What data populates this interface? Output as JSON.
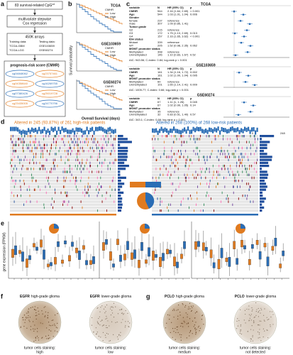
{
  "panels": [
    "a",
    "b",
    "c",
    "d",
    "e",
    "f",
    "g"
  ],
  "a": {
    "step1": "83 survival-related CpG",
    "step1_sup": "cd",
    "step2": [
      "multivariate stepwise",
      "Cox regression"
    ],
    "arrays": "450K arrays",
    "training_title": "Training data:",
    "training": [
      "TCGA-GBM",
      "TCGA-LGG"
    ],
    "testing_title": "Testing data:",
    "testing": [
      "GSE103659",
      "GSE60274"
    ],
    "score": "prognosis-risk score (CMHR)",
    "probes": [
      "cg04848062",
      "cg23757461",
      "cg04358640",
      "cg16269755",
      "cg07380426",
      "cg25019728",
      "cg23435005",
      "cg24770796"
    ]
  },
  "b": {
    "plots": [
      "TCGA",
      "GSE103659",
      "GSE60274"
    ],
    "legend_title": "CMHR",
    "legend": [
      "Low",
      "High"
    ],
    "xlabel": "Overall Survival (days)",
    "ylabel": "Survival probability"
  },
  "c": {
    "header": [
      "variable",
      "N",
      "HR (95% CI)",
      "p"
    ],
    "tables": [
      {
        "title": "TCGA",
        "rows": [
          [
            "CMHR",
            "544",
            "2.16 (1.64, 2.69)",
            "< 0.001"
          ],
          [
            "Age",
            "544",
            "1.03 (1.01, 1.04)",
            "0.006"
          ],
          [
            "Gender"
          ],
          [
            "female",
            "237",
            "reference"
          ],
          [
            "male",
            "307",
            "1.09 (0.85, 1.41)"
          ],
          [
            "Tumor grade"
          ],
          [
            "G2",
            "215",
            "reference"
          ],
          [
            "G3",
            "172",
            "1.75 (1.13, 2.69)",
            "0.013"
          ],
          [
            "G4",
            "157",
            "2.16 (1.65, 3.62)",
            "< 0.001"
          ],
          [
            "IDH status"
          ],
          [
            "Mutant",
            "339",
            "reference"
          ],
          [
            "WT",
            "205",
            "1.52 (0.98, 2.35)",
            "0.062"
          ],
          [
            "MGMT promoter status"
          ],
          [
            "Methylated",
            "398",
            "reference"
          ],
          [
            "Unmethylated",
            "146",
            "1.10 (0.83, 1.67)",
            "0.52"
          ]
        ],
        "footer": "AIC: 943.56; C-index: 0.84; log-rank p < 0.001"
      },
      {
        "title": "GSE103659",
        "rows": [
          [
            "CMHR",
            "161",
            "1.34 (1.16, 1.72)",
            "0.002"
          ],
          [
            "Age",
            "161",
            "1.02 (1.00, 1.04)",
            "0.095"
          ],
          [
            "MGMT promoter status"
          ],
          [
            "Methylated",
            "60",
            "reference"
          ],
          [
            "Unmethylated",
            "101",
            "1.65 (1.14, 2.41)",
            "0.009"
          ]
        ],
        "footer": "AIC: 1005.77; C-index: 0.66; log-rank p < 0.001"
      },
      {
        "title": "GSE60274",
        "rows": [
          [
            "CMHR",
            "67",
            "1.11 (1, 1.26)",
            "0.045"
          ],
          [
            "Age",
            "67",
            "1.02 (0.99, 1.05)",
            "0.14"
          ],
          [
            "MGMT promoter status"
          ],
          [
            "Methylated",
            "35",
            "reference"
          ],
          [
            "Unmethylated",
            "32",
            "0.83 (0.51, 1.40)",
            "0.57"
          ]
        ],
        "footer": "AIC: 343.1; C-index: 0.66; log-rank p < 0.001"
      }
    ]
  },
  "d": {
    "left_title": "Altered in 245 (93.87%) of 261 high-risk patients",
    "left_range": [
      "0",
      "131"
    ],
    "right_title": "Altered in 268 (100%) of 268 low-risk patients",
    "right_range": [
      "0",
      "248"
    ]
  },
  "e": {
    "ylabel": "gene expression (FPKM)"
  },
  "f": {
    "images": [
      {
        "gene": "EGFR",
        "title": "high-grade glioma",
        "caption": [
          "tumor cells staining:",
          "high"
        ]
      },
      {
        "gene": "EGFR",
        "title": "lower-grade glioma",
        "caption": [
          "tumor cells staining:",
          "low"
        ]
      }
    ]
  },
  "g": {
    "images": [
      {
        "gene": "PCLO",
        "title": "high-grade glioma",
        "caption": [
          "tumor cells staining:",
          "medium"
        ]
      },
      {
        "gene": "PCLO",
        "title": "lower-grade glioma",
        "caption": [
          "tumor cells staining:",
          "not detected"
        ]
      }
    ]
  }
}
